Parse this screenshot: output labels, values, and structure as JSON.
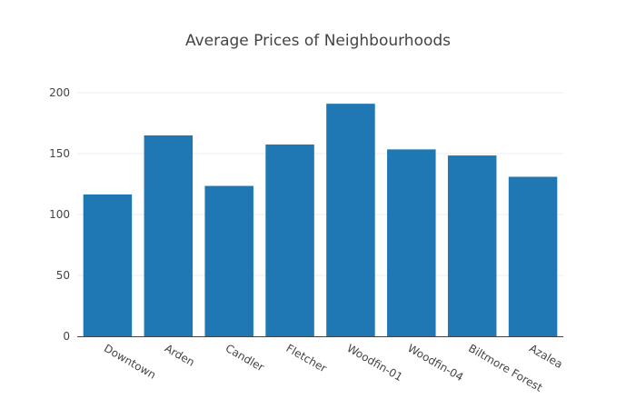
{
  "chart_data": {
    "type": "bar",
    "title": "Average Prices of Neighbourhoods",
    "xlabel": "",
    "ylabel": "",
    "categories": [
      "Downtown",
      "Arden",
      "Candler",
      "Fletcher",
      "Woodfin-01",
      "Woodfin-04",
      "Biltmore Forest",
      "Azalea"
    ],
    "values": [
      116.5,
      165,
      123.5,
      157.5,
      191,
      153.5,
      148.5,
      131
    ],
    "ylim": [
      0,
      212
    ],
    "yticks": [
      0,
      50,
      100,
      150,
      200
    ],
    "grid": true,
    "legend": "none",
    "bar_color": "#1f77b4",
    "grid_color": "#eeeeee",
    "axis_color": "#444444"
  }
}
